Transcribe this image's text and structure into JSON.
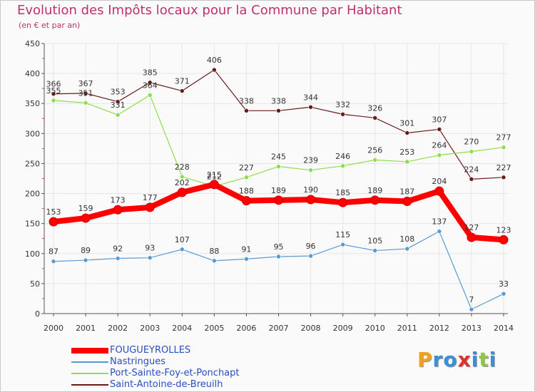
{
  "page": {
    "title": "Evolution des Impôts locaux pour la Commune par Habitant",
    "subtitle": "(en € et par an)",
    "logo_text": "Proxiti"
  },
  "colors": {
    "title": "#c0306a",
    "axis": "#555555",
    "grid": "#e6e6e6",
    "legend_text": "#2a4ec0"
  },
  "chart_data": {
    "type": "line",
    "title": "Evolution des Impôts locaux pour la Commune par Habitant",
    "subtitle": "(en € et par an)",
    "x": [
      "2000",
      "2001",
      "2002",
      "2003",
      "2004",
      "2005",
      "2006",
      "2007",
      "2008",
      "2009",
      "2010",
      "2011",
      "2012",
      "2013",
      "2014"
    ],
    "ylim": [
      0,
      450
    ],
    "yticks": [
      0,
      50,
      100,
      150,
      200,
      250,
      300,
      350,
      400,
      450
    ],
    "grid": true,
    "legend_position": "bottom-left",
    "series": [
      {
        "name": "FOUGUEYROLLES",
        "color": "#ff0000",
        "values": [
          153,
          159,
          173,
          177,
          202,
          215,
          188,
          189,
          190,
          185,
          189,
          187,
          204,
          127,
          123
        ]
      },
      {
        "name": "Nastringues",
        "color": "#5a9ad2",
        "values": [
          87,
          89,
          92,
          93,
          107,
          88,
          91,
          95,
          96,
          115,
          105,
          108,
          137,
          7,
          33
        ]
      },
      {
        "name": "Port-Sainte-Foy-et-Ponchapt",
        "color": "#8fdc4a",
        "values": [
          355,
          351,
          331,
          364,
          228,
          212,
          227,
          245,
          239,
          246,
          256,
          253,
          264,
          270,
          277
        ]
      },
      {
        "name": "Saint-Antoine-de-Breuilh",
        "color": "#6b1a1a",
        "values": [
          366,
          367,
          353,
          385,
          371,
          406,
          338,
          338,
          344,
          332,
          326,
          301,
          307,
          224,
          227
        ]
      }
    ]
  }
}
